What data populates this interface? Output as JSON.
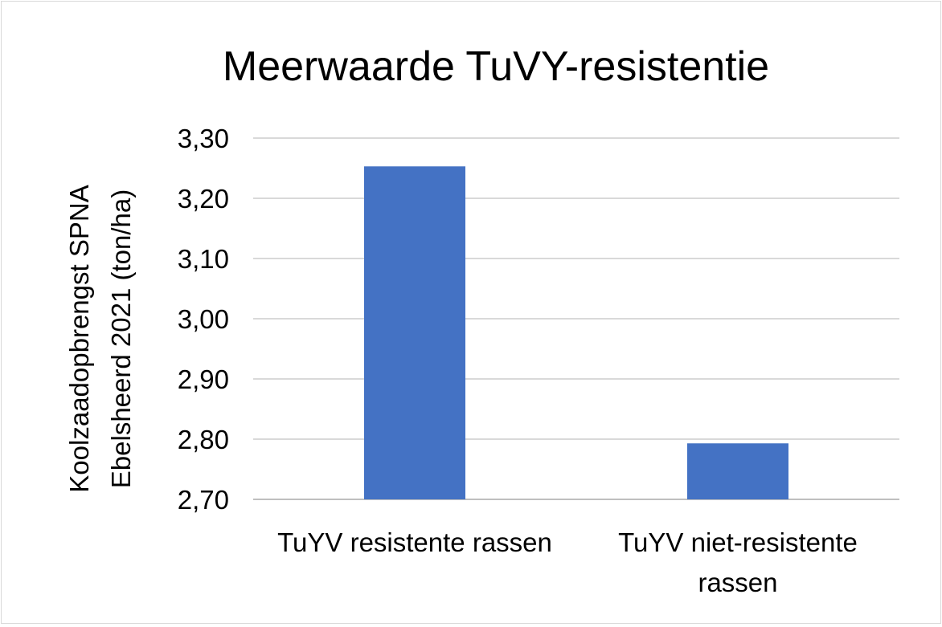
{
  "chart_data": {
    "type": "bar",
    "title": "Meerwaarde TuVY-resistentie",
    "ylabel_lines": [
      "Koolzaadopbrengst SPNA",
      "Ebelsheerd 2021 (ton/ha)"
    ],
    "xlabel": "",
    "categories": [
      [
        "TuYV resistente rassen"
      ],
      [
        "TuYV niet-resistente",
        "rassen"
      ]
    ],
    "series": [
      {
        "values": [
          3.253,
          2.793
        ]
      }
    ],
    "ylim": [
      2.7,
      3.3
    ],
    "yticks": [
      "2,70",
      "2,80",
      "2,90",
      "3,00",
      "3,10",
      "3,20",
      "3,30"
    ],
    "ytick_values": [
      2.7,
      2.8,
      2.9,
      3.0,
      3.1,
      3.2,
      3.3
    ],
    "grid": true,
    "legend": "none",
    "colors": {
      "bar": "#4472C4",
      "grid": "#d9d9d9",
      "axis": "#bfbfbf"
    }
  }
}
